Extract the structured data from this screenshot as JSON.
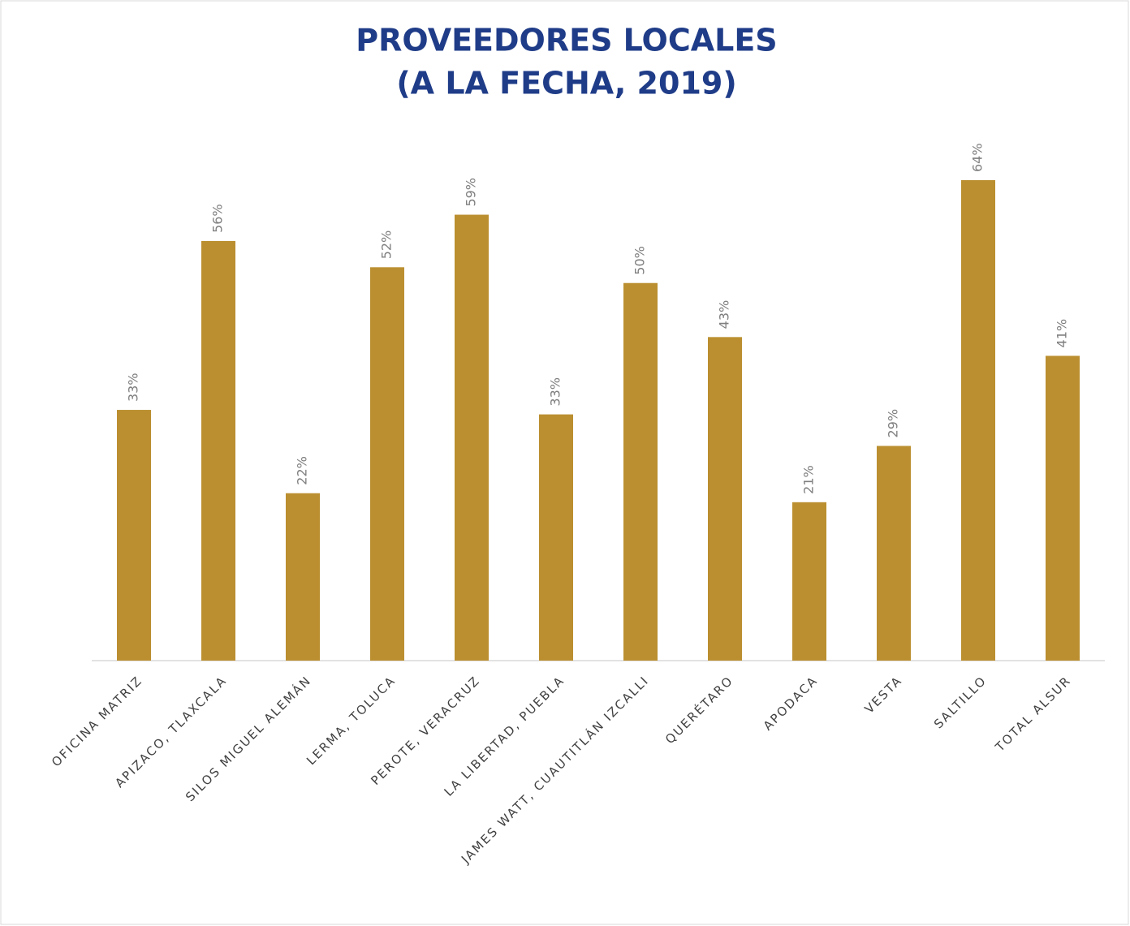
{
  "chart_data": {
    "type": "bar",
    "title": [
      "PROVEEDORES LOCALES",
      "(A LA FECHA, 2019)"
    ],
    "categories": [
      "OFICINA MATRIZ",
      "APIZACO, TLAXCALA",
      "SILOS MIGUEL ALEMÁN",
      "LERMA, TOLUCA",
      "PEROTE, VERACRUZ",
      "LA LIBERTAD, PUEBLA",
      "JAMES WATT, CUAUTITLÁN IZCALLI",
      "QUERÉTARO",
      "APODACA",
      "VESTA",
      "SALTILLO",
      "TOTAL ALSUR"
    ],
    "values": [
      33.4,
      55.9,
      22.3,
      52.4,
      59.4,
      32.8,
      50.3,
      43.1,
      21.1,
      28.6,
      64,
      40.6
    ],
    "value_labels": [
      "33%",
      "56%",
      "22%",
      "52%",
      "59%",
      "33%",
      "50%",
      "43%",
      "21%",
      "29%",
      "64%",
      "41%"
    ],
    "color": "#bb8f30",
    "ylim": [
      0,
      70
    ]
  }
}
